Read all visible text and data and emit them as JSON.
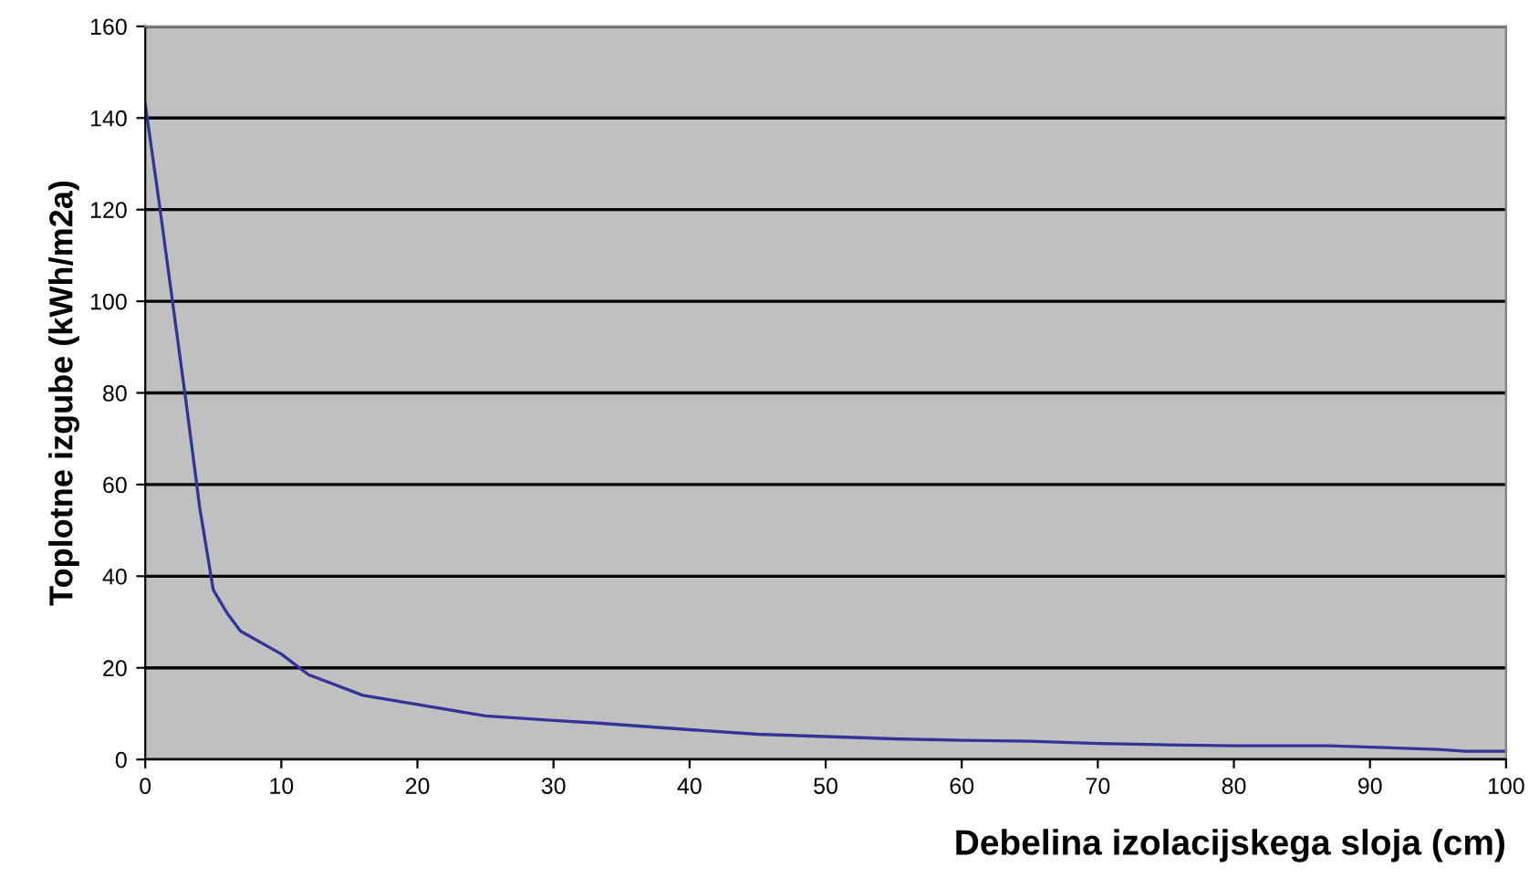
{
  "chart_data": {
    "type": "line",
    "xlabel": "Debelina izolacijskega sloja (cm)",
    "ylabel": "Toplotne izgube (kWh/m2a)",
    "x": [
      0,
      1,
      2,
      3,
      4,
      5,
      6,
      7,
      10,
      12,
      16,
      20,
      25,
      30,
      33,
      40,
      45,
      50,
      55,
      60,
      65,
      70,
      75,
      80,
      87,
      95,
      97,
      100
    ],
    "series": [
      {
        "color": "#333399",
        "values": [
          143,
          122,
          100,
          78,
          55,
          37,
          32,
          28,
          23,
          18.5,
          14,
          12,
          9.5,
          8.5,
          8,
          6.5,
          5.5,
          5,
          4.5,
          4.2,
          4,
          3.5,
          3.2,
          3,
          3,
          2.2,
          1.8,
          1.8
        ]
      }
    ],
    "xlim": [
      0,
      100
    ],
    "ylim": [
      0,
      160
    ],
    "xticks": [
      0,
      10,
      20,
      30,
      40,
      50,
      60,
      70,
      80,
      90,
      100
    ],
    "yticks": [
      0,
      20,
      40,
      60,
      80,
      100,
      120,
      140,
      160
    ],
    "grid": "y",
    "legend": false,
    "marker": "none",
    "line_style": "solid"
  }
}
